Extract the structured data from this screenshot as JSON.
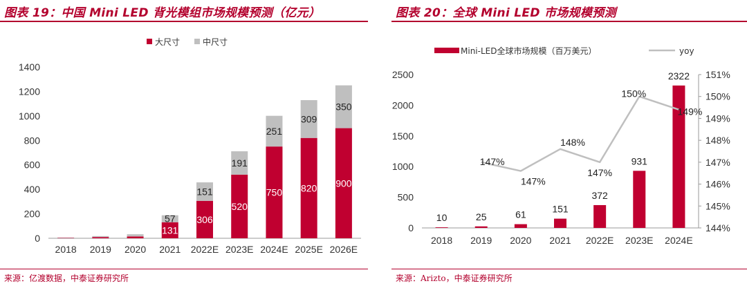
{
  "colors": {
    "primary": "#c00030",
    "secondary": "#bfbfbf",
    "line": "#bfbfbf",
    "frame": "#b3002d"
  },
  "left": {
    "title": "图表 19：中国 Mini LED 背光模组市场规模预测（亿元）",
    "source": "来源：亿渡数据，中泰证券研究所"
  },
  "right": {
    "title": "图表 20：全球 Mini LED 市场规模预测",
    "source": "来源：Arizto，中泰证券研究所"
  },
  "chart_data": [
    {
      "type": "bar",
      "stacked": true,
      "title": "中国 Mini LED 背光模组市场规模预测（亿元）",
      "categories": [
        "2018",
        "2019",
        "2020",
        "2021",
        "2022E",
        "2023E",
        "2024E",
        "2025E",
        "2026E"
      ],
      "series": [
        {
          "name": "大尺寸",
          "values": [
            3,
            10,
            15,
            131,
            306,
            520,
            750,
            820,
            900
          ],
          "labels": [
            "",
            "",
            "",
            "131",
            "306",
            "520",
            "750",
            "820",
            "900"
          ]
        },
        {
          "name": "中尺寸",
          "values": [
            3,
            8,
            18,
            57,
            151,
            191,
            251,
            309,
            350
          ],
          "labels": [
            "",
            "",
            "",
            "57",
            "151",
            "191",
            "251",
            "309",
            "350"
          ]
        }
      ],
      "yticks": [
        "0",
        "200",
        "400",
        "600",
        "800",
        "1000",
        "1200",
        "1400"
      ],
      "ylim": [
        0,
        1400
      ],
      "legend_position": "top"
    },
    {
      "type": "bar+line",
      "title": "全球 Mini LED 市场规模预测",
      "categories": [
        "2018",
        "2019",
        "2020",
        "2021",
        "2022E",
        "2023E",
        "2024E"
      ],
      "series": [
        {
          "name": "Mini-LED全球市场规模（百万美元）",
          "type": "bar",
          "axis": "left",
          "values": [
            10,
            25,
            61,
            151,
            372,
            931,
            2322
          ],
          "labels": [
            "10",
            "25",
            "61",
            "151",
            "372",
            "931",
            "2322"
          ]
        },
        {
          "name": "yoy",
          "type": "line",
          "axis": "right",
          "values": [
            null,
            147.0,
            146.6,
            147.6,
            147.0,
            150.0,
            149.4
          ],
          "labels": [
            "",
            "147%",
            "147%",
            "148%",
            "147%",
            "150%",
            "149%"
          ]
        }
      ],
      "yticks_left": [
        "0",
        "500",
        "1000",
        "1500",
        "2000",
        "2500"
      ],
      "ylim_left": [
        0,
        2500
      ],
      "yticks_right": [
        "144%",
        "145%",
        "146%",
        "147%",
        "148%",
        "149%",
        "150%",
        "151%"
      ],
      "ylim_right": [
        144,
        151
      ],
      "legend_position": "top"
    }
  ]
}
